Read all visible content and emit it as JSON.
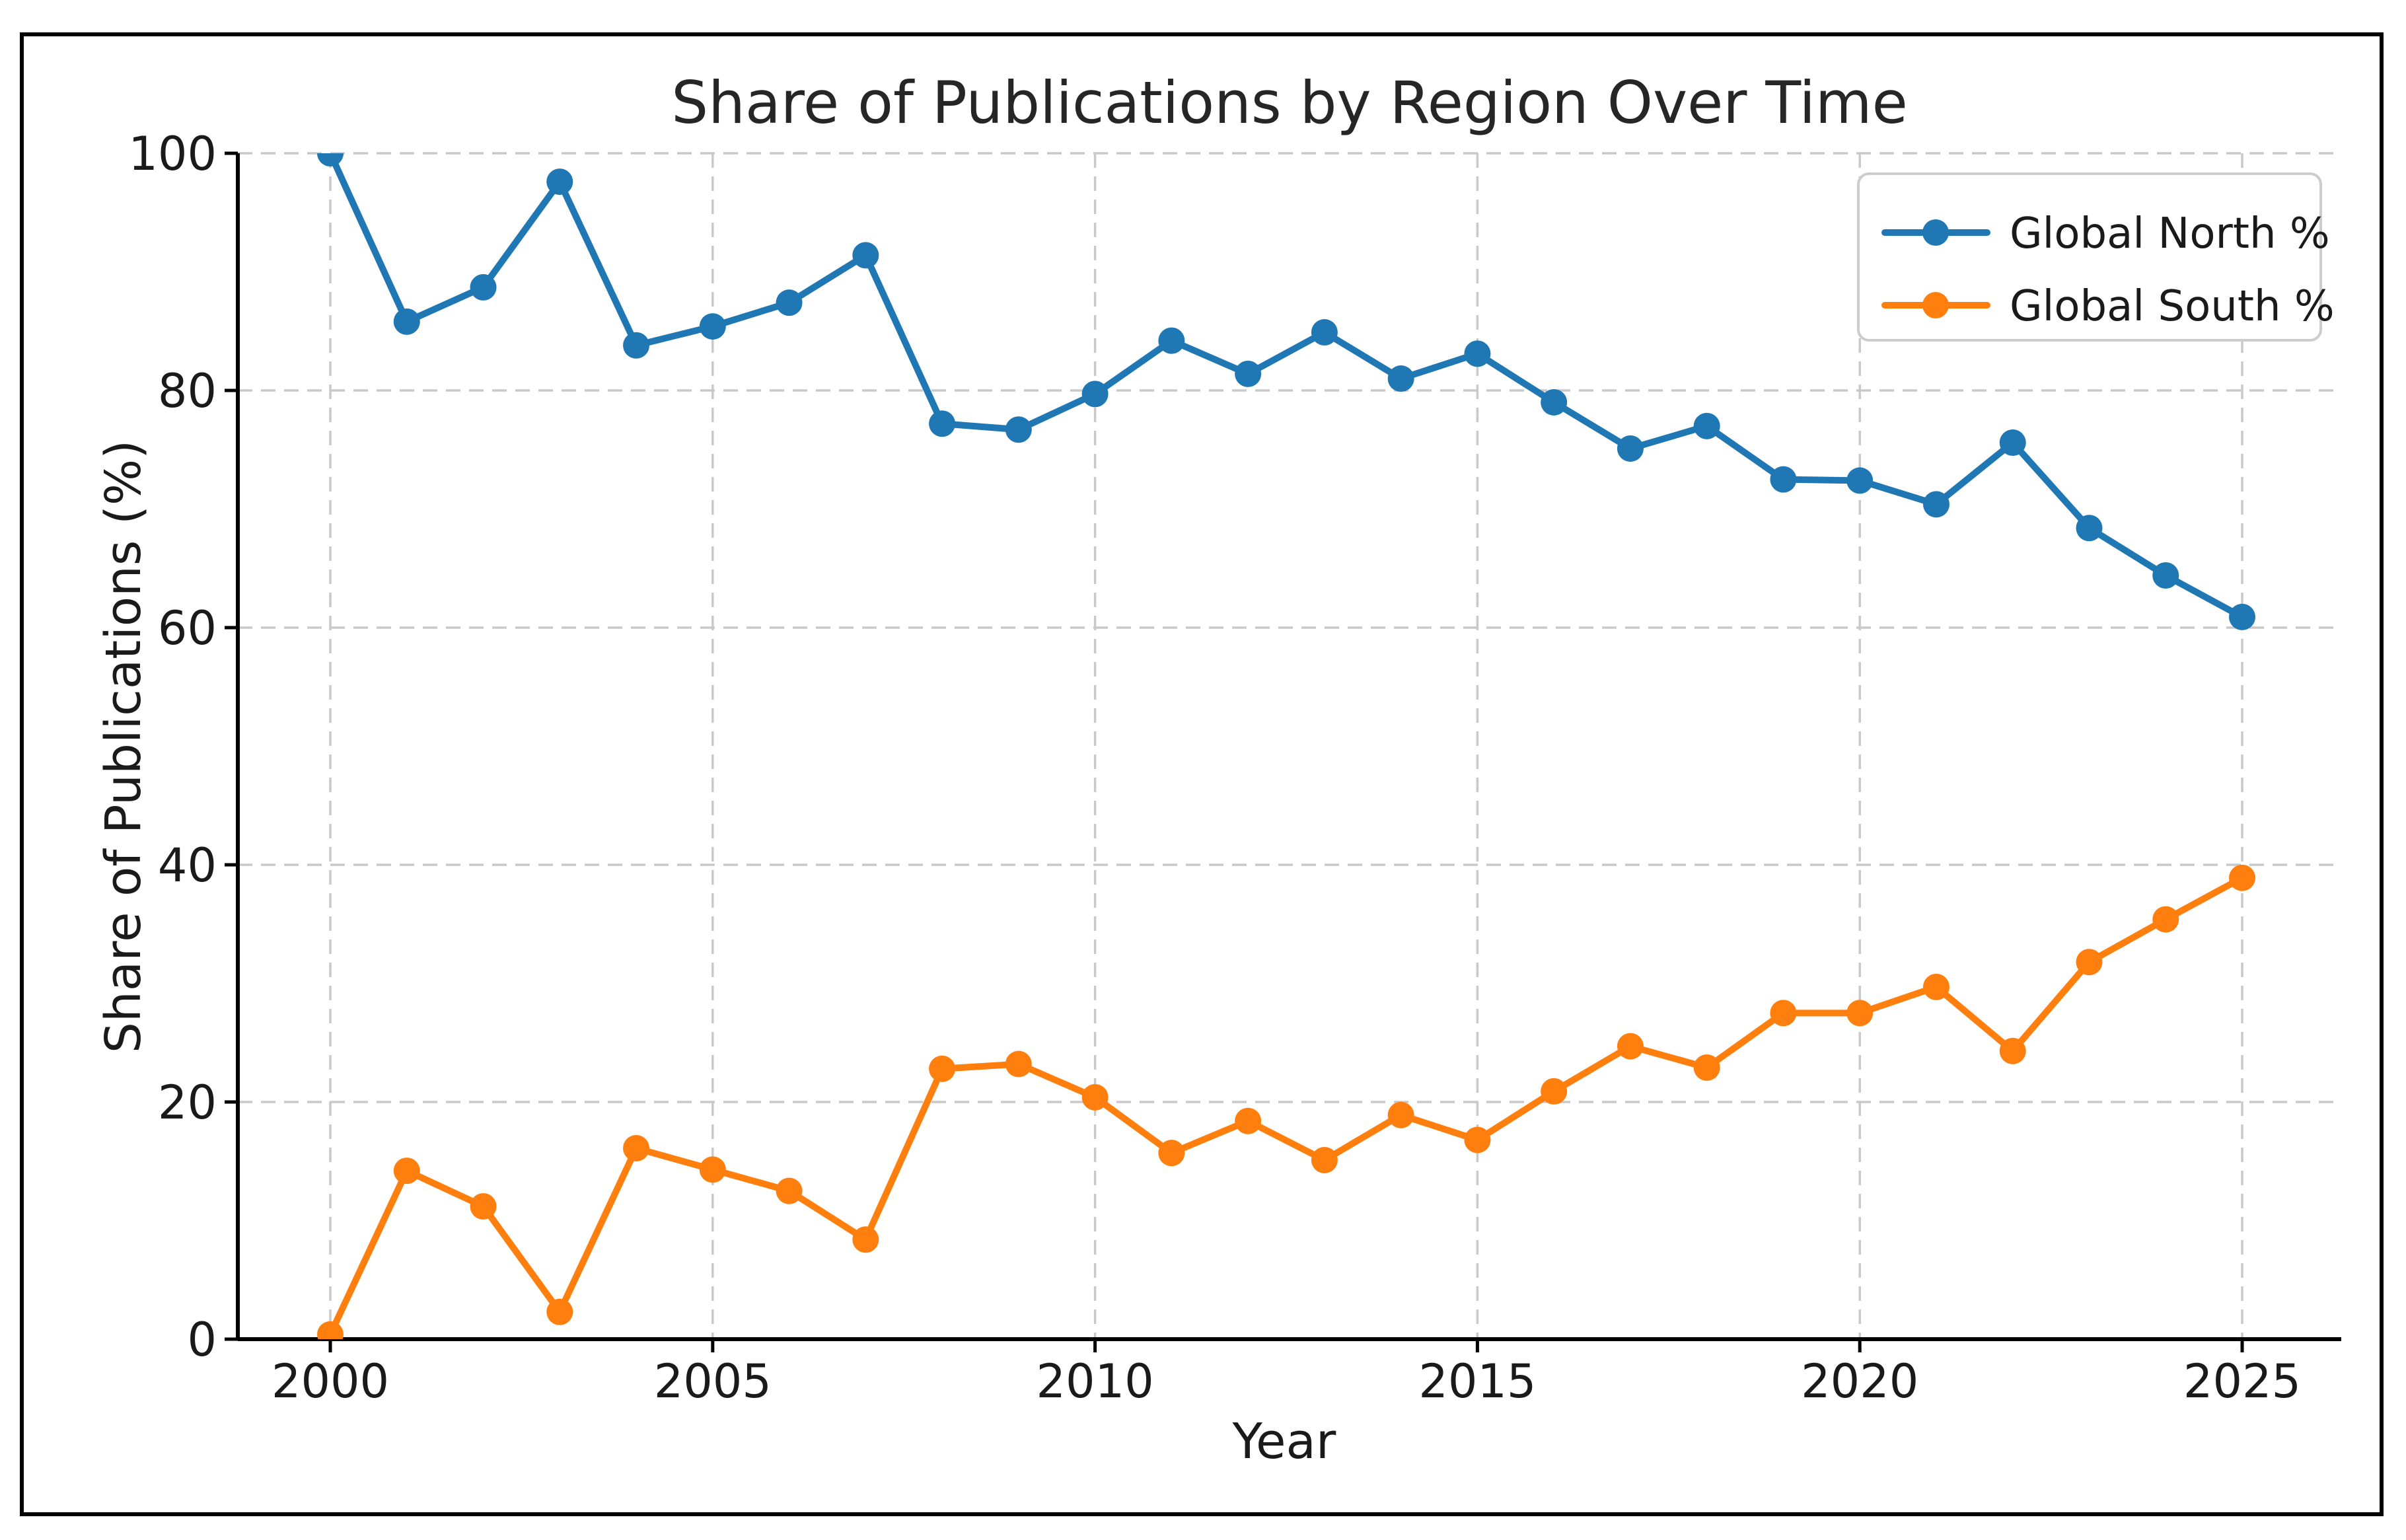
{
  "figure": {
    "title": "Share of Publications by Region Over Time",
    "xlabel": "Year",
    "ylabel": "Share of Publications (%)",
    "background_color": "#ffffff",
    "frame_color": "#000000",
    "grid_color": "#c9c9c9",
    "spine_color": "#000000",
    "text_color": "#1a1a1a"
  },
  "legend": {
    "items": [
      {
        "label": "Global North %",
        "color": "#1f77b4",
        "swatch": "line-with-dot-icon"
      },
      {
        "label": "Global South %",
        "color": "#ff7f0e",
        "swatch": "line-with-dot-icon"
      }
    ],
    "position": "upper right",
    "border_color": "#cccccc",
    "background_color": "#ffffff"
  },
  "chart_data": {
    "type": "line",
    "title": "Share of Publications by Region Over Time",
    "xlabel": "Year",
    "ylabel": "Share of Publications (%)",
    "x": [
      2000,
      2001,
      2002,
      2003,
      2004,
      2005,
      2006,
      2007,
      2008,
      2009,
      2010,
      2011,
      2012,
      2013,
      2014,
      2015,
      2016,
      2017,
      2018,
      2019,
      2020,
      2021,
      2022,
      2023,
      2024,
      2025
    ],
    "series": [
      {
        "name": "Global North %",
        "color": "#1f77b4",
        "marker": "circle",
        "values": [
          100.0,
          85.8,
          88.7,
          97.6,
          83.8,
          85.4,
          87.4,
          91.4,
          77.2,
          76.7,
          79.7,
          84.2,
          81.4,
          84.9,
          81.0,
          83.1,
          79.0,
          75.1,
          77.0,
          72.5,
          72.4,
          70.4,
          75.6,
          68.4,
          64.4,
          60.9
        ]
      },
      {
        "name": "Global South %",
        "color": "#ff7f0e",
        "marker": "circle",
        "values": [
          0.4,
          14.2,
          11.2,
          2.3,
          16.1,
          14.3,
          12.5,
          8.4,
          22.8,
          23.2,
          20.4,
          15.7,
          18.4,
          15.1,
          18.9,
          16.8,
          20.9,
          24.7,
          22.9,
          27.5,
          27.5,
          29.7,
          24.3,
          31.8,
          35.4,
          38.9
        ]
      }
    ],
    "xticks": [
      2000,
      2005,
      2010,
      2015,
      2020,
      2025
    ],
    "yticks": [
      0,
      20,
      40,
      60,
      80,
      100
    ],
    "xlim": [
      1998.8,
      2026.3
    ],
    "ylim": [
      0,
      100
    ],
    "grid": true,
    "grid_style": "dashed",
    "legend_position": "upper right"
  }
}
